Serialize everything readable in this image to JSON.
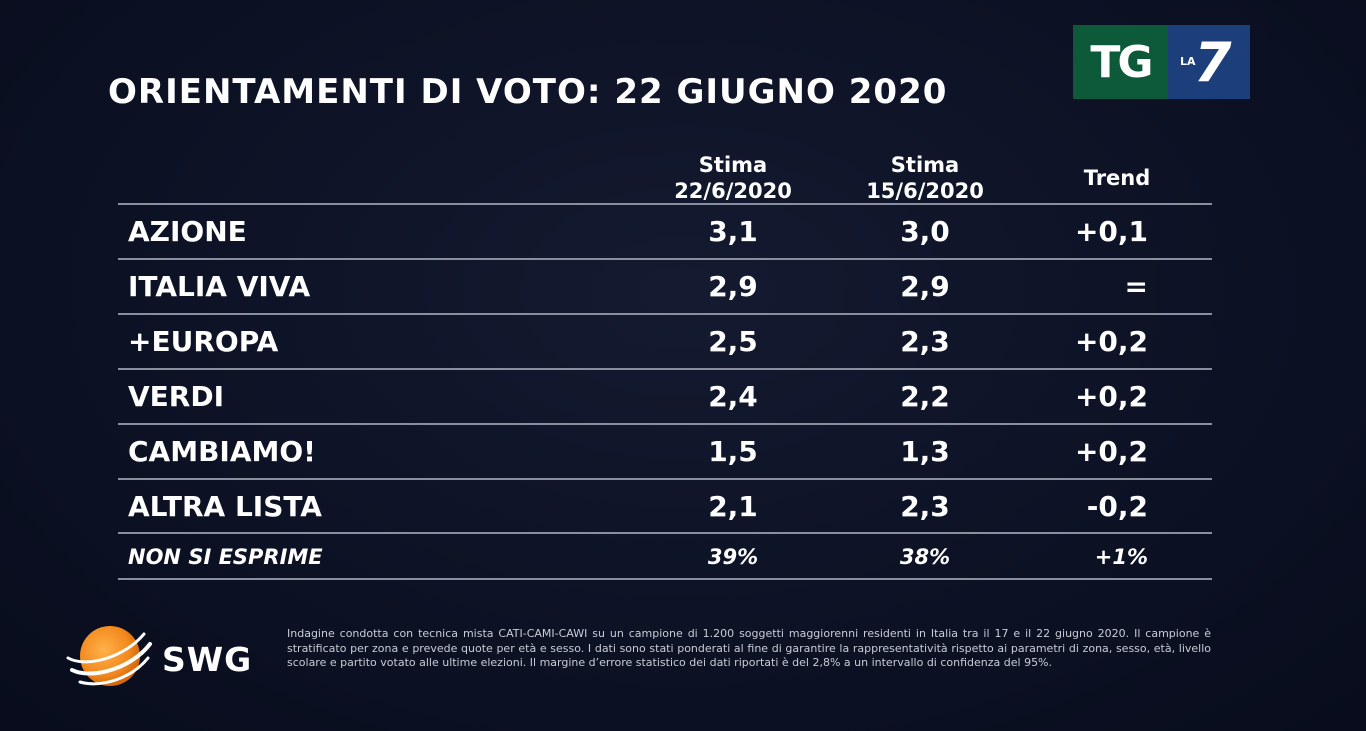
{
  "title": "ORIENTAMENTI DI VOTO: 22 GIUGNO 2020",
  "logo": {
    "tg": "TG",
    "la": "LA",
    "seven": "7",
    "tg_color": "#0d5a3a",
    "la7_color": "#1c3f7c"
  },
  "chart_data": {
    "type": "table",
    "title": "ORIENTAMENTI DI VOTO: 22 GIUGNO 2020",
    "columns": [
      {
        "line1": "Stima",
        "line2": "22/6/2020"
      },
      {
        "line1": "Stima",
        "line2": "15/6/2020"
      },
      {
        "line1": "Trend",
        "line2": ""
      }
    ],
    "rows": [
      {
        "party": "AZIONE",
        "v1": "3,1",
        "v2": "3,0",
        "trend": "+0,1"
      },
      {
        "party": "ITALIA VIVA",
        "v1": "2,9",
        "v2": "2,9",
        "trend": "="
      },
      {
        "party": "+EUROPA",
        "v1": "2,5",
        "v2": "2,3",
        "trend": "+0,2"
      },
      {
        "party": "VERDI",
        "v1": "2,4",
        "v2": "2,2",
        "trend": "+0,2"
      },
      {
        "party": "CAMBIAMO!",
        "v1": "1,5",
        "v2": "1,3",
        "trend": "+0,2"
      },
      {
        "party": "ALTRA LISTA",
        "v1": "2,1",
        "v2": "2,3",
        "trend": "-0,2"
      }
    ],
    "footer_row": {
      "party": "NON SI ESPRIME",
      "v1": "39%",
      "v2": "38%",
      "trend": "+1%"
    }
  },
  "source": {
    "brand": "SWG",
    "note": "Indagine condotta con tecnica mista CATI-CAMI-CAWI su un campione di 1.200 soggetti maggiorenni residenti in Italia tra il 17 e il 22 giugno 2020. Il campione è stratificato per zona e prevede quote per età e sesso. I dati sono stati ponderati al fine di garantire la rappresentatività rispetto ai parametri di zona, sesso, età, livello scolare e partito votato alle ultime elezioni. Il margine d’errore statistico dei dati riportati è del 2,8% a un intervallo di confidenza del 95%.",
    "globe_color": "#f28a1e"
  }
}
